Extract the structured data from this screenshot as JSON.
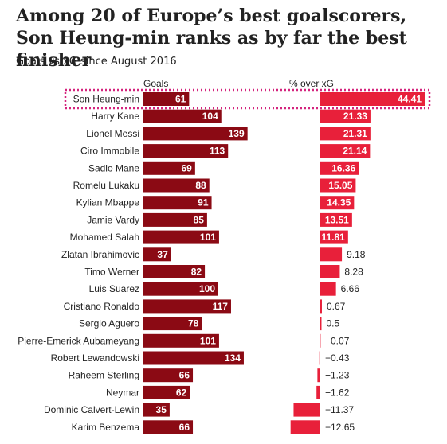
{
  "title": "Among 20 of Europe’s best goalscorers, Son Heung-min ranks as by far the best finisher",
  "subtitle": "Goals vs xG since August 2016",
  "colors": {
    "goals_bar": "#8b0a14",
    "pct_bar": "#e8203a",
    "highlight": "#d4237d",
    "text": "#222222"
  },
  "chart_data": {
    "type": "bar",
    "title": "Among 20 of Europe’s best goalscorers, Son Heung-min ranks as by far the best finisher",
    "subtitle": "Goals vs xG since August 2016",
    "highlight_player": "Son Heung-min",
    "categories": [
      "Son Heung-min",
      "Harry Kane",
      "Lionel Messi",
      "Ciro Immobile",
      "Sadio Mane",
      "Romelu Lukaku",
      "Kylian Mbappe",
      "Jamie Vardy",
      "Mohamed Salah",
      "Zlatan Ibrahimovic",
      "Timo Werner",
      "Luis Suarez",
      "Cristiano Ronaldo",
      "Sergio Aguero",
      "Pierre-Emerick Aubameyang",
      "Robert Lewandowski",
      "Raheem Sterling",
      "Neymar",
      "Dominic Calvert-Lewin",
      "Karim Benzema"
    ],
    "series": [
      {
        "name": "Goals",
        "values": [
          61,
          104,
          139,
          113,
          69,
          88,
          91,
          85,
          101,
          37,
          82,
          100,
          117,
          78,
          101,
          134,
          66,
          62,
          35,
          66
        ],
        "labels": [
          "61",
          "104",
          "139",
          "113",
          "69",
          "88",
          "91",
          "85",
          "101",
          "37",
          "82",
          "100",
          "117",
          "78",
          "101",
          "134",
          "66",
          "62",
          "35",
          "66"
        ]
      },
      {
        "name": "% over xG",
        "values": [
          44.41,
          21.33,
          21.31,
          21.14,
          16.36,
          15.05,
          14.35,
          13.51,
          11.81,
          9.18,
          8.28,
          6.66,
          0.67,
          0.5,
          -0.07,
          -0.43,
          -1.23,
          -1.62,
          -11.37,
          -12.65
        ],
        "labels": [
          "44.41",
          "21.33",
          "21.31",
          "21.14",
          "16.36",
          "15.05",
          "14.35",
          "13.51",
          "11.81",
          "9.18",
          "8.28",
          "6.66",
          "0.67",
          "0.5",
          "−0.07",
          "−0.43",
          "−1.23",
          "−1.62",
          "−11.37",
          "−12.65"
        ]
      }
    ],
    "grid": false,
    "legend": "none"
  }
}
